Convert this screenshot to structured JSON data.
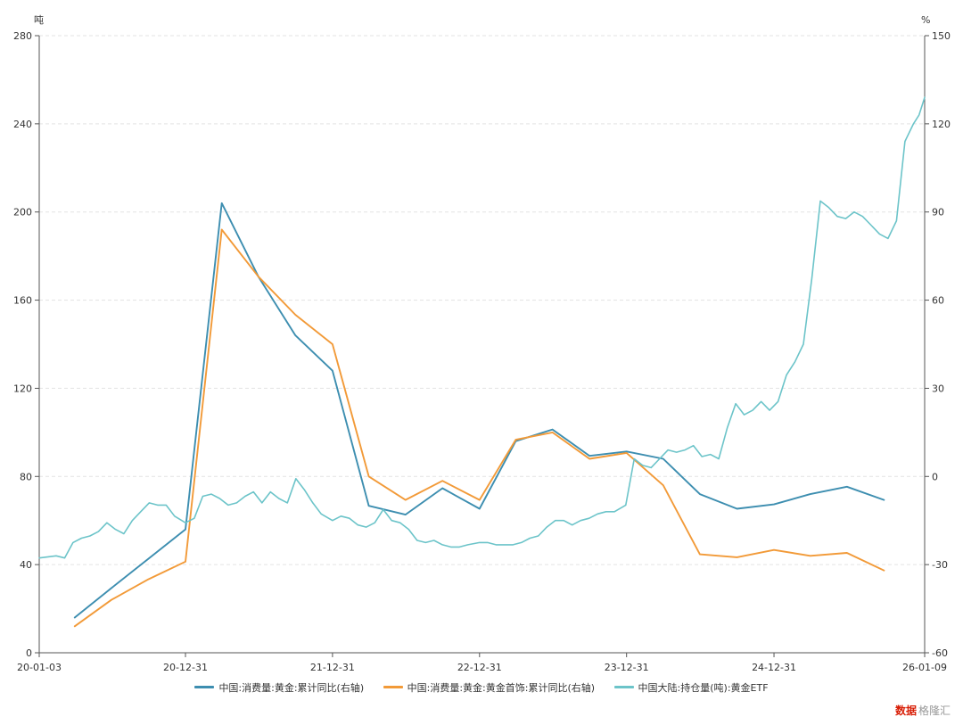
{
  "chart_data": {
    "type": "line",
    "left_axis_unit": "吨",
    "right_axis_unit": "%",
    "left_ylim": [
      0,
      280
    ],
    "left_ticks": [
      0,
      40,
      80,
      120,
      160,
      200,
      240,
      280
    ],
    "right_ylim": [
      -60,
      150
    ],
    "right_ticks": [
      -60,
      -30,
      0,
      30,
      60,
      90,
      120,
      150
    ],
    "xlim": [
      "2020-01-03",
      "2026-01-09"
    ],
    "x_ticks": [
      {
        "date": "2020-01-03",
        "label": "20-01-03"
      },
      {
        "date": "2020-12-31",
        "label": "20-12-31"
      },
      {
        "date": "2021-12-31",
        "label": "21-12-31"
      },
      {
        "date": "2022-12-31",
        "label": "22-12-31"
      },
      {
        "date": "2023-12-31",
        "label": "23-12-31"
      },
      {
        "date": "2024-12-31",
        "label": "24-12-31"
      },
      {
        "date": "2026-01-09",
        "label": "26-01-09"
      }
    ],
    "grid": true,
    "legend_position": "bottom",
    "series": [
      {
        "name": "中国:消费量:黄金:累计同比(右轴)",
        "axis": "right",
        "color": "#3d8eb0",
        "points": [
          [
            "2020-03-31",
            -48
          ],
          [
            "2020-06-30",
            -38
          ],
          [
            "2020-09-30",
            -28
          ],
          [
            "2020-12-31",
            -18
          ],
          [
            "2021-03-31",
            93
          ],
          [
            "2021-06-30",
            68
          ],
          [
            "2021-09-30",
            48
          ],
          [
            "2021-12-31",
            36
          ],
          [
            "2022-03-31",
            -10
          ],
          [
            "2022-06-30",
            -13
          ],
          [
            "2022-09-30",
            -4
          ],
          [
            "2022-12-31",
            -11
          ],
          [
            "2023-03-31",
            12
          ],
          [
            "2023-06-30",
            16
          ],
          [
            "2023-09-30",
            7
          ],
          [
            "2023-12-31",
            8.5
          ],
          [
            "2024-03-31",
            6
          ],
          [
            "2024-06-30",
            -6
          ],
          [
            "2024-09-30",
            -11
          ],
          [
            "2024-12-31",
            -9.5
          ],
          [
            "2025-03-31",
            -6
          ],
          [
            "2025-06-30",
            -3.5
          ],
          [
            "2025-09-30",
            -8
          ]
        ]
      },
      {
        "name": "中国:消费量:黄金:黄金首饰:累计同比(右轴)",
        "axis": "right",
        "color": "#f29a38",
        "points": [
          [
            "2020-03-31",
            -51
          ],
          [
            "2020-06-30",
            -42
          ],
          [
            "2020-09-30",
            -35
          ],
          [
            "2020-12-31",
            -29
          ],
          [
            "2021-03-31",
            84
          ],
          [
            "2021-06-30",
            68
          ],
          [
            "2021-09-30",
            55
          ],
          [
            "2021-12-31",
            45
          ],
          [
            "2022-03-31",
            0
          ],
          [
            "2022-06-30",
            -8
          ],
          [
            "2022-09-30",
            -1.5
          ],
          [
            "2022-12-31",
            -8
          ],
          [
            "2023-03-31",
            12.5
          ],
          [
            "2023-06-30",
            15
          ],
          [
            "2023-09-30",
            6
          ],
          [
            "2023-12-31",
            8
          ],
          [
            "2024-03-31",
            -3
          ],
          [
            "2024-06-30",
            -26.5
          ],
          [
            "2024-09-30",
            -27.5
          ],
          [
            "2024-12-31",
            -25
          ],
          [
            "2025-03-31",
            -27
          ],
          [
            "2025-06-30",
            -26
          ],
          [
            "2025-09-30",
            -32
          ]
        ]
      },
      {
        "name": "中国大陆:持仓量(吨):黄金ETF",
        "axis": "left",
        "color": "#6cc4c9",
        "points": [
          [
            "2020-01-03",
            43
          ],
          [
            "2020-02-14",
            44
          ],
          [
            "2020-03-06",
            43
          ],
          [
            "2020-03-27",
            50
          ],
          [
            "2020-04-17",
            52
          ],
          [
            "2020-05-08",
            53
          ],
          [
            "2020-05-29",
            55
          ],
          [
            "2020-06-19",
            59
          ],
          [
            "2020-07-10",
            56
          ],
          [
            "2020-07-31",
            54
          ],
          [
            "2020-08-21",
            60
          ],
          [
            "2020-09-11",
            64
          ],
          [
            "2020-10-02",
            68
          ],
          [
            "2020-10-23",
            67
          ],
          [
            "2020-11-13",
            67
          ],
          [
            "2020-12-04",
            62
          ],
          [
            "2020-12-31",
            59
          ],
          [
            "2021-01-22",
            61
          ],
          [
            "2021-02-12",
            71
          ],
          [
            "2021-03-05",
            72
          ],
          [
            "2021-03-26",
            70
          ],
          [
            "2021-04-16",
            67
          ],
          [
            "2021-05-07",
            68
          ],
          [
            "2021-05-28",
            71
          ],
          [
            "2021-06-18",
            73
          ],
          [
            "2021-07-09",
            68
          ],
          [
            "2021-07-30",
            73
          ],
          [
            "2021-08-20",
            70
          ],
          [
            "2021-09-10",
            68
          ],
          [
            "2021-10-01",
            79
          ],
          [
            "2021-10-22",
            74
          ],
          [
            "2021-11-12",
            68
          ],
          [
            "2021-12-03",
            63
          ],
          [
            "2021-12-31",
            60
          ],
          [
            "2022-01-21",
            62
          ],
          [
            "2022-02-11",
            61
          ],
          [
            "2022-03-04",
            58
          ],
          [
            "2022-03-25",
            57
          ],
          [
            "2022-04-15",
            59
          ],
          [
            "2022-05-06",
            65
          ],
          [
            "2022-05-27",
            60
          ],
          [
            "2022-06-17",
            59
          ],
          [
            "2022-07-08",
            56
          ],
          [
            "2022-07-29",
            51
          ],
          [
            "2022-08-19",
            50
          ],
          [
            "2022-09-09",
            51
          ],
          [
            "2022-09-30",
            49
          ],
          [
            "2022-10-21",
            48
          ],
          [
            "2022-11-11",
            48
          ],
          [
            "2022-12-02",
            49
          ],
          [
            "2022-12-31",
            50
          ],
          [
            "2023-01-20",
            50
          ],
          [
            "2023-02-10",
            49
          ],
          [
            "2023-03-03",
            49
          ],
          [
            "2023-03-24",
            49
          ],
          [
            "2023-04-14",
            50
          ],
          [
            "2023-05-05",
            52
          ],
          [
            "2023-05-26",
            53
          ],
          [
            "2023-06-16",
            57
          ],
          [
            "2023-07-07",
            60
          ],
          [
            "2023-07-28",
            60
          ],
          [
            "2023-08-18",
            58
          ],
          [
            "2023-09-08",
            60
          ],
          [
            "2023-09-29",
            61
          ],
          [
            "2023-10-20",
            63
          ],
          [
            "2023-11-10",
            64
          ],
          [
            "2023-12-01",
            64
          ],
          [
            "2023-12-29",
            67
          ],
          [
            "2024-01-19",
            88
          ],
          [
            "2024-02-09",
            85
          ],
          [
            "2024-03-01",
            84
          ],
          [
            "2024-03-22",
            88
          ],
          [
            "2024-04-12",
            92
          ],
          [
            "2024-05-03",
            91
          ],
          [
            "2024-05-24",
            92
          ],
          [
            "2024-06-14",
            94
          ],
          [
            "2024-07-05",
            89
          ],
          [
            "2024-07-26",
            90
          ],
          [
            "2024-08-16",
            88
          ],
          [
            "2024-09-06",
            102
          ],
          [
            "2024-09-27",
            113
          ],
          [
            "2024-10-18",
            108
          ],
          [
            "2024-11-08",
            110
          ],
          [
            "2024-11-29",
            114
          ],
          [
            "2024-12-20",
            110
          ],
          [
            "2025-01-10",
            114
          ],
          [
            "2025-01-31",
            126
          ],
          [
            "2025-02-21",
            132
          ],
          [
            "2025-03-14",
            140
          ],
          [
            "2025-04-04",
            170
          ],
          [
            "2025-04-25",
            205
          ],
          [
            "2025-05-16",
            202
          ],
          [
            "2025-06-06",
            198
          ],
          [
            "2025-06-27",
            197
          ],
          [
            "2025-07-18",
            200
          ],
          [
            "2025-08-08",
            198
          ],
          [
            "2025-08-29",
            194
          ],
          [
            "2025-09-19",
            190
          ],
          [
            "2025-10-10",
            188
          ],
          [
            "2025-10-31",
            196
          ],
          [
            "2025-11-21",
            232
          ],
          [
            "2025-12-12",
            240
          ],
          [
            "2025-12-26",
            244
          ],
          [
            "2026-01-09",
            252
          ]
        ]
      }
    ]
  },
  "source": {
    "label": "数据",
    "brand": "格隆汇"
  }
}
